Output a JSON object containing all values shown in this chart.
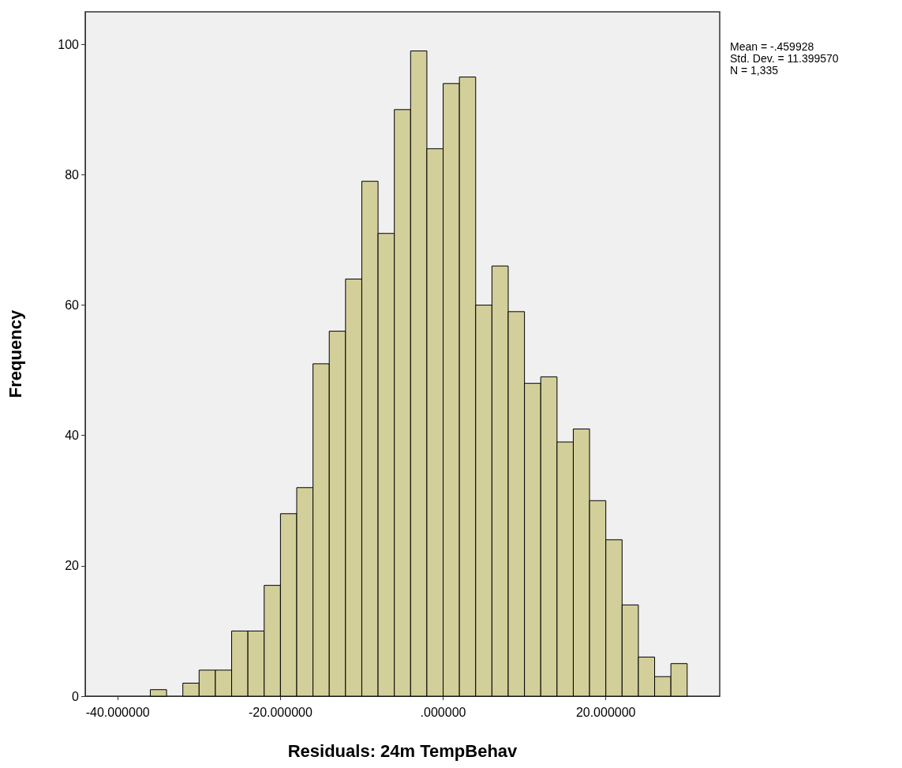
{
  "chart_data": {
    "type": "histogram",
    "xlabel": "Residuals: 24m TempBehav",
    "ylabel": "Frequency",
    "bins": [
      -36,
      -34,
      -32,
      -30,
      -28,
      -26,
      -24,
      -22,
      -20,
      -18,
      -16,
      -14,
      -12,
      -10,
      -8,
      -6,
      -4,
      -2,
      0,
      2,
      4,
      6,
      8,
      10,
      12,
      14,
      16,
      18,
      20,
      22,
      24,
      26,
      28,
      30
    ],
    "values": [
      1,
      0,
      2,
      4,
      4,
      10,
      10,
      17,
      28,
      32,
      51,
      56,
      64,
      79,
      71,
      90,
      99,
      84,
      94,
      95,
      60,
      66,
      59,
      48,
      49,
      39,
      41,
      30,
      24,
      14,
      6,
      3,
      5
    ],
    "color": "#d3cf9a",
    "xlim": [
      -44,
      34
    ],
    "xticks": [
      {
        "value": -40,
        "label": "-40.000000"
      },
      {
        "value": -20,
        "label": "-20.000000"
      },
      {
        "value": 0,
        "label": ".000000"
      },
      {
        "value": 20,
        "label": "20.000000"
      }
    ],
    "ylim": [
      0,
      105
    ],
    "yticks": [
      0,
      20,
      40,
      60,
      80,
      100
    ],
    "annotations": [
      "Mean = -.459928",
      "Std. Dev. = 11.399570",
      "N = 1,335"
    ]
  }
}
